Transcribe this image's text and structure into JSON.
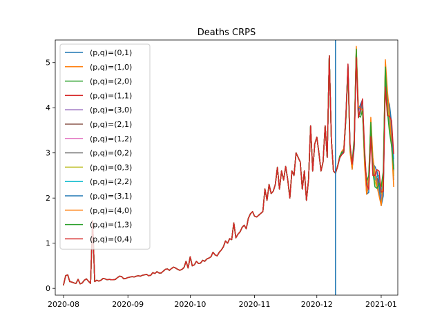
{
  "chart_data": {
    "type": "line",
    "title": "Deaths CRPS",
    "xlabel": "",
    "ylabel": "",
    "x_start": "2020-08-01",
    "xlim": [
      "2020-07-28",
      "2021-01-09"
    ],
    "ylim": [
      -0.15,
      5.5
    ],
    "x_ticks": [
      "2020-08",
      "2020-09",
      "2020-10",
      "2020-11",
      "2020-12",
      "2021-01"
    ],
    "y_ticks": [
      "0",
      "1",
      "2",
      "3",
      "4",
      "5"
    ],
    "vline_date": "2020-12-10",
    "vline_color": "#1f77b4",
    "legend_position": "upper left",
    "grid": false,
    "base_values": [
      0.08,
      0.28,
      0.3,
      0.15,
      0.14,
      0.12,
      0.11,
      0.2,
      0.1,
      0.12,
      0.18,
      0.21,
      0.16,
      0.11,
      1.5,
      0.15,
      0.18,
      0.16,
      0.18,
      0.22,
      0.21,
      0.19,
      0.2,
      0.19,
      0.19,
      0.2,
      0.24,
      0.27,
      0.26,
      0.21,
      0.22,
      0.24,
      0.25,
      0.26,
      0.25,
      0.27,
      0.28,
      0.27,
      0.29,
      0.3,
      0.31,
      0.28,
      0.29,
      0.35,
      0.33,
      0.37,
      0.34,
      0.34,
      0.38,
      0.42,
      0.43,
      0.4,
      0.44,
      0.47,
      0.45,
      0.42,
      0.4,
      0.42,
      0.46,
      0.6,
      0.45,
      0.7,
      0.5,
      0.52,
      0.6,
      0.55,
      0.56,
      0.62,
      0.6,
      0.65,
      0.67,
      0.7,
      0.8,
      0.74,
      0.72,
      0.8,
      0.85,
      0.92,
      1.05,
      1.0,
      1.1,
      1.08,
      1.45,
      1.12,
      1.2,
      1.25,
      1.35,
      1.4,
      1.32,
      1.55,
      1.65,
      1.7,
      1.6,
      1.58,
      1.62,
      1.66,
      1.7,
      2.2,
      1.95,
      2.3,
      2.1,
      2.15,
      2.3,
      2.68,
      2.2,
      2.6,
      2.4,
      2.7,
      2.4,
      2.0,
      2.6,
      2.5,
      3.0,
      2.9,
      2.8,
      2.2,
      2.6,
      1.95,
      2.4,
      3.6,
      2.6,
      3.2,
      3.35,
      3.0,
      2.6,
      2.8,
      3.6,
      2.9,
      5.15,
      3.3,
      2.6,
      2.55,
      2.7,
      2.9,
      3.0,
      3.05,
      3.8,
      4.9,
      3.1,
      2.7,
      3.2,
      5.25,
      3.9,
      3.95,
      4.05,
      2.9,
      2.2,
      2.3,
      3.6,
      2.7,
      2.5,
      2.4,
      2.3,
      2.0,
      2.3,
      4.8,
      4.1,
      3.8,
      3.4,
      2.6
    ],
    "series": [
      {
        "name": "(p,q)=(0,1)",
        "color": "#1f77b4"
      },
      {
        "name": "(p,q)=(1,0)",
        "color": "#ff7f0e"
      },
      {
        "name": "(p,q)=(2,0)",
        "color": "#2ca02c"
      },
      {
        "name": "(p,q)=(1,1)",
        "color": "#d62728"
      },
      {
        "name": "(p,q)=(3,0)",
        "color": "#9467bd"
      },
      {
        "name": "(p,q)=(2,1)",
        "color": "#8c564b"
      },
      {
        "name": "(p,q)=(1,2)",
        "color": "#e377c2"
      },
      {
        "name": "(p,q)=(0,2)",
        "color": "#7f7f7f"
      },
      {
        "name": "(p,q)=(0,3)",
        "color": "#bcbd22"
      },
      {
        "name": "(p,q)=(2,2)",
        "color": "#17becf"
      },
      {
        "name": "(p,q)=(3,1)",
        "color": "#1f77b4"
      },
      {
        "name": "(p,q)=(4,0)",
        "color": "#ff7f0e"
      },
      {
        "name": "(p,q)=(1,3)",
        "color": "#2ca02c"
      },
      {
        "name": "(p,q)=(0,4)",
        "color": "#d62728"
      }
    ]
  }
}
